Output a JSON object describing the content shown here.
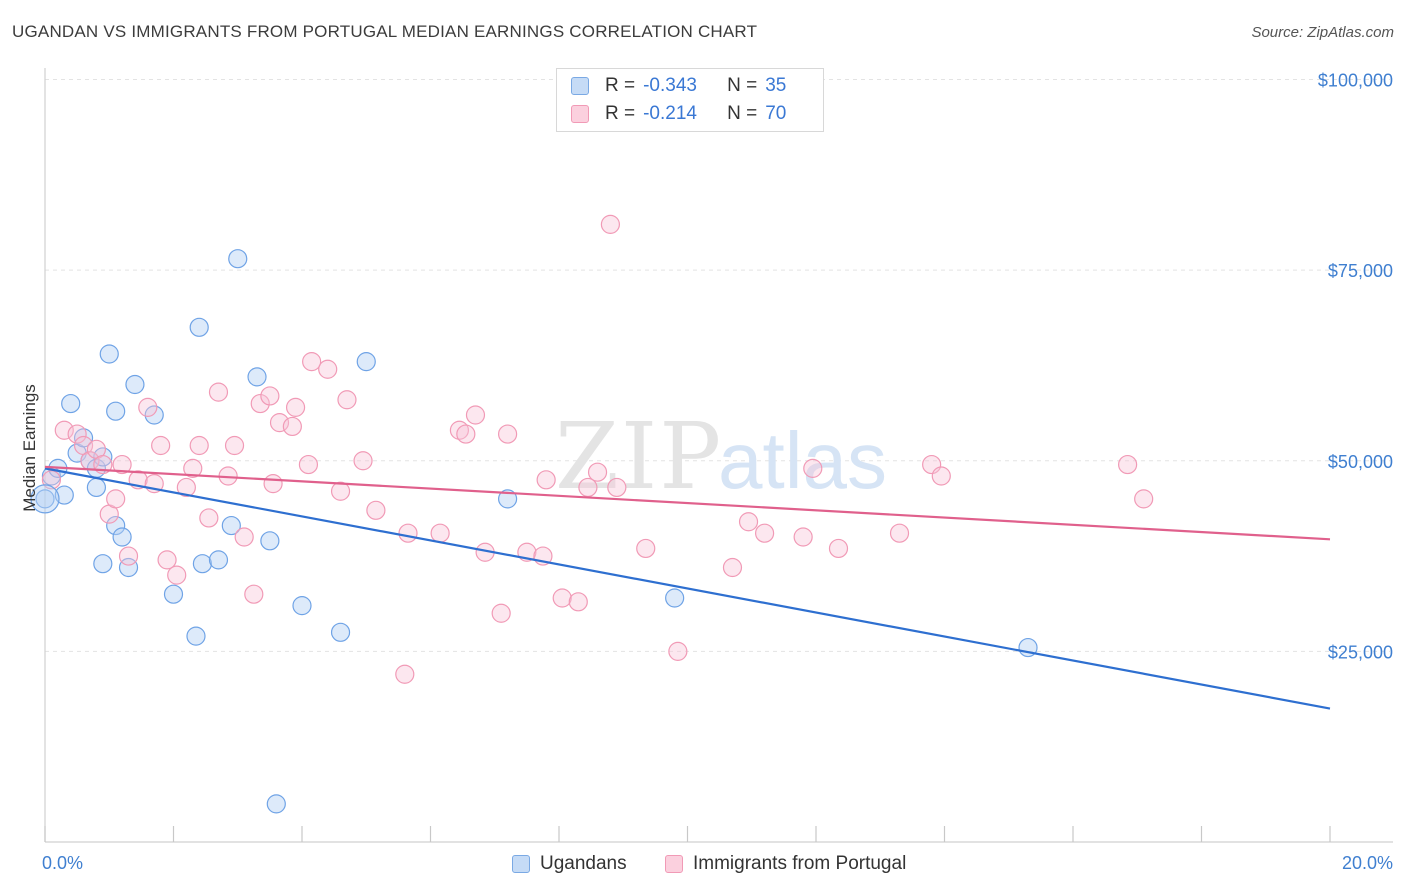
{
  "title": "UGANDAN VS IMMIGRANTS FROM PORTUGAL MEDIAN EARNINGS CORRELATION CHART",
  "source": "Source: ZipAtlas.com",
  "watermark": {
    "zip": "ZIP",
    "atlas": "atlas"
  },
  "legend": {
    "r_label": "R =",
    "n_label": "N =",
    "rows": [
      {
        "r": "-0.343",
        "n": "35",
        "color": "#9ec2f0"
      },
      {
        "r": "-0.214",
        "n": "70",
        "color": "#f5a9c2"
      }
    ]
  },
  "bottom_legend": [
    "Ugandans",
    "Immigrants from Portugal"
  ],
  "chart_data": {
    "type": "scatter",
    "title": "UGANDAN VS IMMIGRANTS FROM PORTUGAL MEDIAN EARNINGS CORRELATION CHART",
    "xlabel": "",
    "ylabel": "Median Earnings",
    "xlim": [
      0,
      20
    ],
    "ylim": [
      0,
      105000
    ],
    "x_tick_labels": [
      "0.0%",
      "20.0%"
    ],
    "y_ticks": [
      25000,
      50000,
      75000,
      100000
    ],
    "y_tick_labels": [
      "$25,000",
      "$50,000",
      "$75,000",
      "$100,000"
    ],
    "grid": true,
    "series": [
      {
        "name": "Ugandans",
        "color": "#6fa3e6",
        "trend_color": "#2e6fd0",
        "trend": {
          "x0": 0,
          "y0": 49000,
          "x1": 20,
          "y1": 17500
        },
        "points": [
          [
            0.0,
            45000
          ],
          [
            0.1,
            48000
          ],
          [
            0.3,
            45500
          ],
          [
            0.4,
            57500
          ],
          [
            0.5,
            51000
          ],
          [
            0.6,
            53000
          ],
          [
            0.7,
            50000
          ],
          [
            0.8,
            46500
          ],
          [
            0.8,
            49000
          ],
          [
            0.9,
            50500
          ],
          [
            0.9,
            36500
          ],
          [
            1.0,
            64000
          ],
          [
            1.1,
            41500
          ],
          [
            1.1,
            56500
          ],
          [
            1.2,
            40000
          ],
          [
            1.3,
            36000
          ],
          [
            1.4,
            60000
          ],
          [
            1.7,
            56000
          ],
          [
            2.0,
            32500
          ],
          [
            2.35,
            27000
          ],
          [
            2.4,
            67500
          ],
          [
            2.45,
            36500
          ],
          [
            2.7,
            37000
          ],
          [
            2.9,
            41500
          ],
          [
            3.0,
            76500
          ],
          [
            3.3,
            61000
          ],
          [
            3.5,
            39500
          ],
          [
            3.6,
            5000
          ],
          [
            4.0,
            31000
          ],
          [
            4.6,
            27500
          ],
          [
            5.0,
            63000
          ],
          [
            7.2,
            45000
          ],
          [
            9.8,
            32000
          ],
          [
            15.3,
            25500
          ],
          [
            0.2,
            49000
          ]
        ]
      },
      {
        "name": "Immigrants from Portugal",
        "color": "#f19ab6",
        "trend_color": "#e0608c",
        "trend": {
          "x0": 0,
          "y0": 49200,
          "x1": 20,
          "y1": 39700
        },
        "points": [
          [
            0.1,
            47500
          ],
          [
            0.3,
            54000
          ],
          [
            0.5,
            53500
          ],
          [
            0.6,
            52000
          ],
          [
            0.7,
            50000
          ],
          [
            0.8,
            51500
          ],
          [
            0.9,
            49500
          ],
          [
            1.0,
            43000
          ],
          [
            1.1,
            45000
          ],
          [
            1.2,
            49500
          ],
          [
            1.3,
            37500
          ],
          [
            1.45,
            47500
          ],
          [
            1.6,
            57000
          ],
          [
            1.7,
            47000
          ],
          [
            1.8,
            52000
          ],
          [
            1.9,
            37000
          ],
          [
            2.05,
            35000
          ],
          [
            2.2,
            46500
          ],
          [
            2.3,
            49000
          ],
          [
            2.4,
            52000
          ],
          [
            2.55,
            42500
          ],
          [
            2.7,
            59000
          ],
          [
            2.85,
            48000
          ],
          [
            2.95,
            52000
          ],
          [
            3.1,
            40000
          ],
          [
            3.25,
            32500
          ],
          [
            3.35,
            57500
          ],
          [
            3.5,
            58500
          ],
          [
            3.55,
            47000
          ],
          [
            3.65,
            55000
          ],
          [
            3.85,
            54500
          ],
          [
            3.9,
            57000
          ],
          [
            4.1,
            49500
          ],
          [
            4.15,
            63000
          ],
          [
            4.4,
            62000
          ],
          [
            4.6,
            46000
          ],
          [
            4.7,
            58000
          ],
          [
            4.95,
            50000
          ],
          [
            5.15,
            43500
          ],
          [
            5.65,
            40500
          ],
          [
            5.6,
            22000
          ],
          [
            6.15,
            40500
          ],
          [
            6.45,
            54000
          ],
          [
            6.55,
            53500
          ],
          [
            6.7,
            56000
          ],
          [
            6.85,
            38000
          ],
          [
            7.1,
            30000
          ],
          [
            7.2,
            53500
          ],
          [
            7.5,
            38000
          ],
          [
            7.75,
            37500
          ],
          [
            7.8,
            47500
          ],
          [
            8.05,
            32000
          ],
          [
            8.3,
            31500
          ],
          [
            8.45,
            46500
          ],
          [
            8.6,
            48500
          ],
          [
            8.8,
            81000
          ],
          [
            8.9,
            46500
          ],
          [
            9.35,
            38500
          ],
          [
            9.85,
            25000
          ],
          [
            10.7,
            36000
          ],
          [
            10.95,
            42000
          ],
          [
            11.2,
            40500
          ],
          [
            11.8,
            40000
          ],
          [
            11.95,
            49000
          ],
          [
            12.35,
            38500
          ],
          [
            13.3,
            40500
          ],
          [
            13.8,
            49500
          ],
          [
            13.95,
            48000
          ],
          [
            16.85,
            49500
          ],
          [
            17.1,
            45000
          ]
        ]
      }
    ]
  }
}
